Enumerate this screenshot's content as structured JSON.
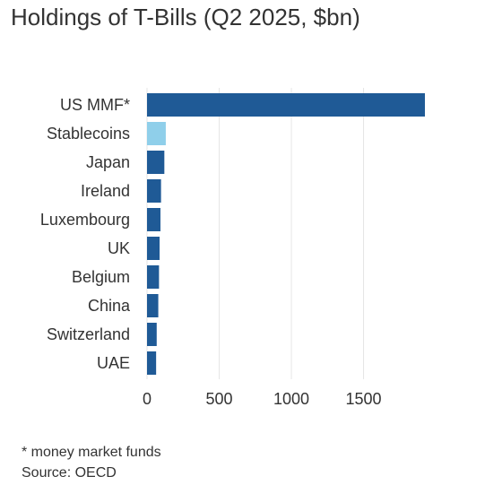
{
  "chart_data": {
    "type": "bar",
    "orientation": "horizontal",
    "title": "Holdings of T-Bills (Q2 2025, $bn)",
    "categories": [
      "US MMF*",
      "Stablecoins",
      "Japan",
      "Ireland",
      "Luxembourg",
      "UK",
      "Belgium",
      "China",
      "Switzerland",
      "UAE"
    ],
    "values": [
      1925,
      130,
      120,
      97,
      93,
      87,
      83,
      78,
      67,
      63
    ],
    "colors": [
      "#1f5a96",
      "#8fcfea",
      "#1f5a96",
      "#1f5a96",
      "#1f5a96",
      "#1f5a96",
      "#1f5a96",
      "#1f5a96",
      "#1f5a96",
      "#1f5a96"
    ],
    "xticks": [
      0,
      500,
      1000,
      1500
    ],
    "xlim": [
      0,
      1950
    ],
    "grid": true
  },
  "notes": {
    "footnote": "* money market funds",
    "source": "Source: OECD"
  },
  "colors": {
    "primary_bar": "#1f5a96",
    "highlight_bar": "#8fcfea",
    "grid": "#e6e6e6",
    "text": "#333333"
  }
}
